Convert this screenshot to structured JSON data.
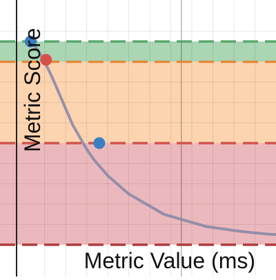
{
  "chart_data": {
    "type": "line",
    "title": "",
    "xlabel": "Metric Value (ms)",
    "ylabel": "Metric Score",
    "xlim": [
      0,
      37
    ],
    "ylim": [
      -0.02,
      1.1
    ],
    "grid": true,
    "bands": [
      {
        "from": 0.9,
        "to": 1.0,
        "color": "#72bb82"
      },
      {
        "from": 0.5,
        "to": 0.9,
        "color": "#fbb77c"
      },
      {
        "from": 0.0,
        "to": 0.5,
        "color": "#dd8a91"
      }
    ],
    "thresholds": [
      {
        "y": 1.0,
        "color": "#5aa86c"
      },
      {
        "y": 0.9,
        "color": "#e58a3a"
      },
      {
        "y": 0.5,
        "color": "#d1544c"
      },
      {
        "y": 0.0,
        "color": "#b23b3b"
      }
    ],
    "series": [
      {
        "color": "#8b8aa6",
        "x": [
          2,
          3,
          4,
          5,
          6,
          7,
          8,
          9,
          10,
          11,
          12,
          13,
          14,
          15,
          16,
          17,
          18,
          19,
          20,
          21,
          22,
          23,
          24,
          25,
          26,
          27,
          28,
          29,
          30,
          31,
          32,
          33,
          34,
          35,
          36,
          37
        ],
        "values": [
          1.0,
          0.96,
          0.9,
          0.83,
          0.75,
          0.67,
          0.59,
          0.53,
          0.47,
          0.42,
          0.38,
          0.34,
          0.31,
          0.28,
          0.25,
          0.23,
          0.21,
          0.19,
          0.17,
          0.15,
          0.14,
          0.13,
          0.12,
          0.11,
          0.1,
          0.09,
          0.085,
          0.08,
          0.075,
          0.07,
          0.066,
          0.062,
          0.058,
          0.055,
          0.052,
          0.05
        ]
      }
    ],
    "points": [
      {
        "x": 2.0,
        "y": 1.0,
        "color": "#3a7fc4"
      },
      {
        "x": 4.2,
        "y": 0.91,
        "color": "#d6504a"
      },
      {
        "x": 11.8,
        "y": 0.5,
        "color": "#3a7fc4"
      }
    ]
  }
}
